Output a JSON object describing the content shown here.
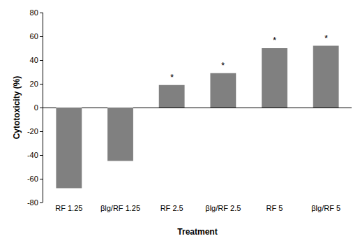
{
  "chart_data": {
    "type": "bar",
    "x_label": "Treatment",
    "y_label": "Cytotoxicity (%)",
    "categories": [
      "RF 1.25",
      "βlg/RF 1.25",
      "RF 2.5",
      "βlg/RF 2.5",
      "RF 5",
      "βlg/RF 5"
    ],
    "values": [
      -68,
      -45,
      19,
      29,
      50,
      52
    ],
    "color": "#808080",
    "ylim": [
      -80,
      80
    ],
    "yticks": [
      -80,
      -60,
      -40,
      -20,
      0,
      20,
      40,
      60,
      80
    ],
    "grid": false,
    "annotations": [
      {
        "category": "RF 2.5",
        "text": "*"
      },
      {
        "category": "βlg/RF 2.5",
        "text": "*"
      },
      {
        "category": "RF 5",
        "text": "*"
      },
      {
        "category": "βlg/RF 5",
        "text": "*"
      }
    ]
  }
}
